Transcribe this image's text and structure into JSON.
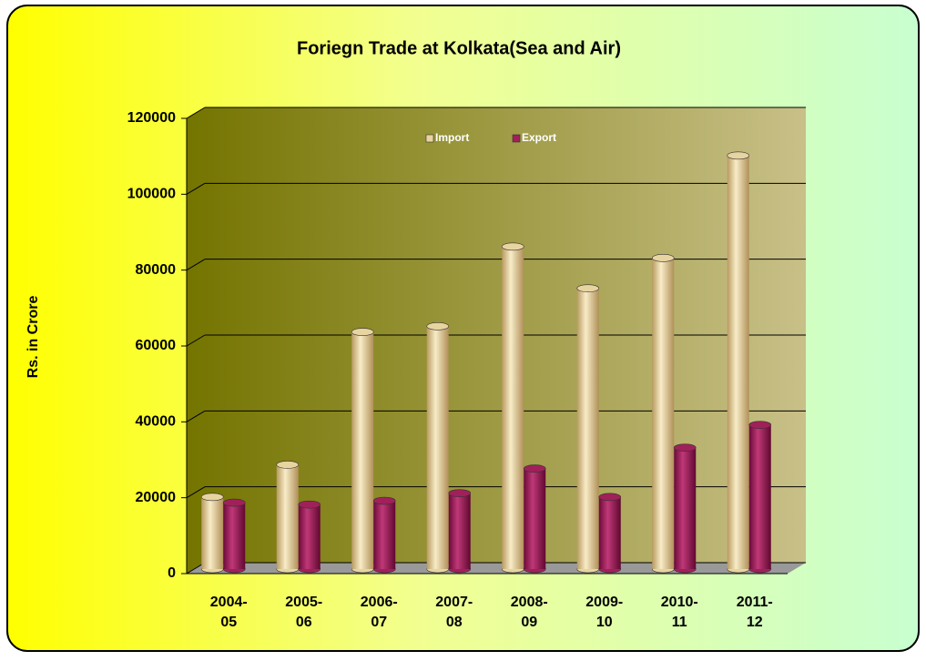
{
  "chart_data": {
    "type": "bar",
    "title": "Foriegn Trade at Kolkata(Sea and Air)",
    "y_label": "Rs. in Crore",
    "categories": [
      "2004-05",
      "2005-06",
      "2006-07",
      "2007-08",
      "2008-09",
      "2009-10",
      "2010-11",
      "2011-12"
    ],
    "series": [
      {
        "name": "Import",
        "color": "#e8d4a0",
        "values": [
          19000,
          27500,
          62500,
          64000,
          85000,
          74000,
          82000,
          109000
        ]
      },
      {
        "name": "Export",
        "color": "#a0205a",
        "values": [
          17500,
          17000,
          18000,
          20000,
          26500,
          19000,
          32000,
          38000
        ]
      }
    ],
    "ylim": [
      0,
      120000
    ],
    "yticks": [
      0,
      20000,
      40000,
      60000,
      80000,
      100000,
      120000
    ],
    "grid": true,
    "legend": "top"
  }
}
